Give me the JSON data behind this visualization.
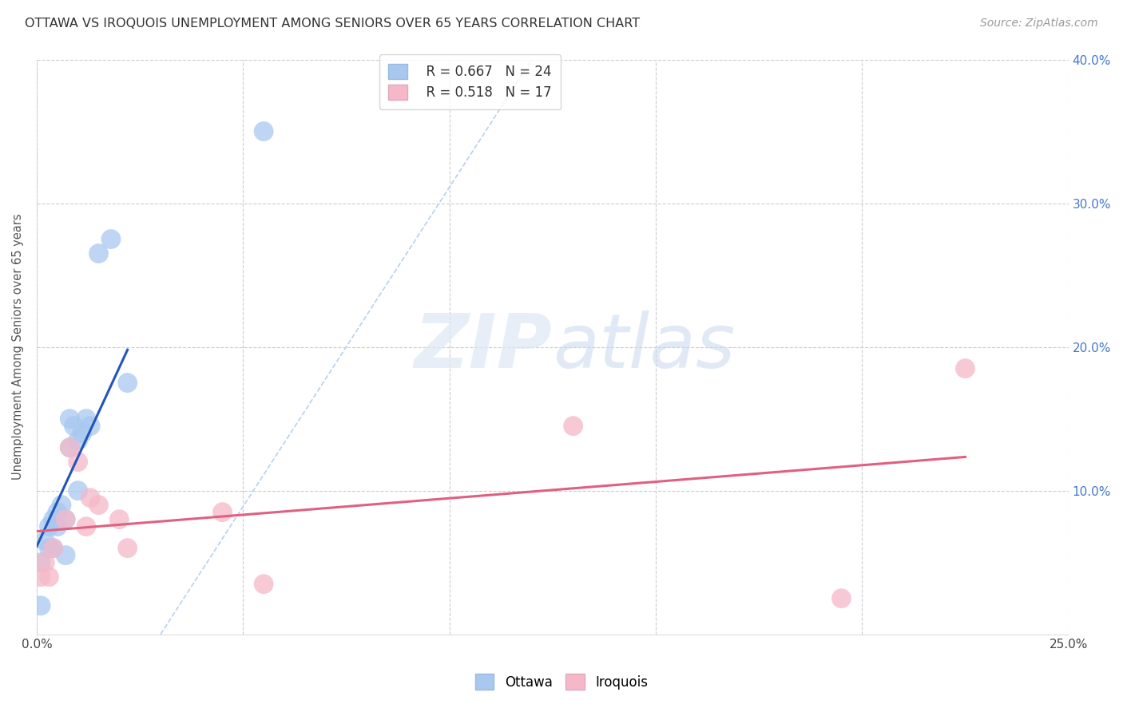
{
  "title": "OTTAWA VS IROQUOIS UNEMPLOYMENT AMONG SENIORS OVER 65 YEARS CORRELATION CHART",
  "source": "Source: ZipAtlas.com",
  "ylabel": "Unemployment Among Seniors over 65 years",
  "xlim": [
    0.0,
    0.25
  ],
  "ylim": [
    0.0,
    0.4
  ],
  "xticks": [
    0.0,
    0.05,
    0.1,
    0.15,
    0.2,
    0.25
  ],
  "yticks": [
    0.0,
    0.1,
    0.2,
    0.3,
    0.4
  ],
  "xticklabels_left": [
    "0.0%",
    "",
    "",
    "",
    "",
    "25.0%"
  ],
  "yticklabels_right": [
    "",
    "10.0%",
    "20.0%",
    "30.0%",
    "40.0%"
  ],
  "ottawa_color": "#a8c8f0",
  "iroquois_color": "#f5b8c8",
  "ottawa_line_color": "#2255bb",
  "iroquois_line_color": "#e06080",
  "diagonal_color": "#b8d0ee",
  "legend_r_ottawa": "R = 0.667",
  "legend_n_ottawa": "N = 24",
  "legend_r_iroquois": "R = 0.518",
  "legend_n_iroquois": "N = 17",
  "ottawa_x": [
    0.001,
    0.001,
    0.002,
    0.003,
    0.003,
    0.004,
    0.004,
    0.005,
    0.005,
    0.006,
    0.007,
    0.007,
    0.008,
    0.008,
    0.009,
    0.01,
    0.01,
    0.011,
    0.012,
    0.013,
    0.015,
    0.018,
    0.022,
    0.055
  ],
  "ottawa_y": [
    0.05,
    0.02,
    0.065,
    0.06,
    0.075,
    0.06,
    0.08,
    0.085,
    0.075,
    0.09,
    0.055,
    0.08,
    0.13,
    0.15,
    0.145,
    0.1,
    0.135,
    0.14,
    0.15,
    0.145,
    0.265,
    0.275,
    0.175,
    0.35
  ],
  "iroquois_x": [
    0.001,
    0.002,
    0.003,
    0.004,
    0.007,
    0.008,
    0.01,
    0.012,
    0.013,
    0.015,
    0.02,
    0.022,
    0.045,
    0.055,
    0.13,
    0.195,
    0.225
  ],
  "iroquois_y": [
    0.04,
    0.05,
    0.04,
    0.06,
    0.08,
    0.13,
    0.12,
    0.075,
    0.095,
    0.09,
    0.08,
    0.06,
    0.085,
    0.035,
    0.145,
    0.025,
    0.185
  ],
  "watermark_zip": "ZIP",
  "watermark_atlas": "atlas",
  "background_color": "#ffffff",
  "grid_color": "#cccccc",
  "grid_style": "--"
}
